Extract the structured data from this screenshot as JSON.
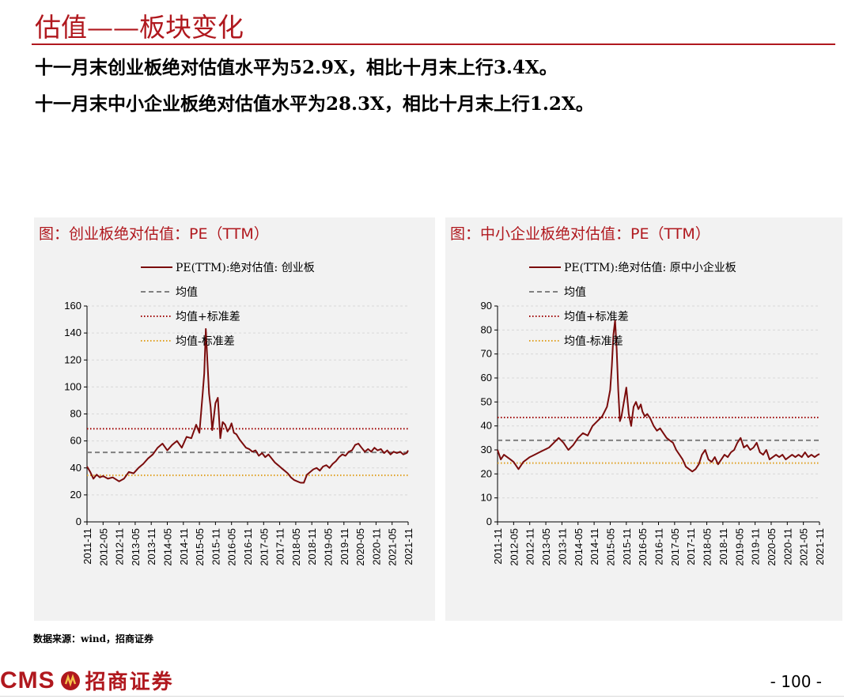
{
  "header": {
    "title": "估值——板块变化",
    "line1": "十一月末创业板绝对估值水平为52.9X，相比十月末上行3.4X。",
    "line2": "十一月末中小企业板绝对估值水平为28.3X，相比十月末上行1.2X。"
  },
  "footer": {
    "source": "数据来源：wind，招商证券",
    "logo_text": "CMS",
    "logo_cn": "招商证券",
    "page_number": "- 100 -"
  },
  "colors": {
    "brand": "#b0181e",
    "pe_line": "#7a0c0c",
    "mean": "#808080",
    "upper": "#a00000",
    "lower": "#e0a020"
  },
  "chart_data": [
    {
      "type": "line",
      "title": "图：创业板绝对估值：PE（TTM）",
      "categories": [
        "2011-11",
        "2012-05",
        "2012-11",
        "2013-05",
        "2013-11",
        "2014-05",
        "2014-11",
        "2015-05",
        "2015-11",
        "2016-05",
        "2016-11",
        "2017-05",
        "2017-11",
        "2018-05",
        "2018-11",
        "2019-05",
        "2019-11",
        "2020-05",
        "2020-11",
        "2021-05",
        "2021-11"
      ],
      "ylim": [
        0,
        160
      ],
      "yticks": [
        0,
        20,
        40,
        60,
        80,
        100,
        120,
        140,
        160
      ],
      "grid": true,
      "legend_position": "top-center",
      "series": [
        {
          "name": "PE(TTM):绝对估值: 创业板",
          "style": "solid",
          "x": [
            0,
            0.2,
            0.4,
            0.6,
            0.8,
            1.0,
            1.3,
            1.6,
            2.0,
            2.3,
            2.6,
            2.9,
            3.2,
            3.5,
            3.8,
            4.1,
            4.4,
            4.7,
            5.0,
            5.3,
            5.6,
            5.9,
            6.2,
            6.5,
            6.8,
            7.0,
            7.1,
            7.2,
            7.3,
            7.4,
            7.5,
            7.6,
            7.7,
            7.8,
            7.9,
            8.0,
            8.15,
            8.3,
            8.45,
            8.6,
            8.75,
            8.9,
            9.0,
            9.15,
            9.3,
            9.5,
            9.7,
            9.9,
            10.1,
            10.3,
            10.5,
            10.7,
            10.9,
            11.1,
            11.3,
            11.5,
            11.7,
            11.9,
            12.1,
            12.3,
            12.5,
            12.7,
            12.9,
            13.1,
            13.3,
            13.5,
            13.7,
            13.9,
            14.1,
            14.3,
            14.5,
            14.7,
            14.9,
            15.1,
            15.3,
            15.5,
            15.7,
            15.9,
            16.1,
            16.3,
            16.5,
            16.7,
            16.9,
            17.1,
            17.3,
            17.5,
            17.7,
            17.9,
            18.1,
            18.3,
            18.5,
            18.7,
            18.9,
            19.1,
            19.3,
            19.5,
            19.7,
            19.9,
            20.0
          ],
          "y": [
            41,
            37,
            32,
            35,
            33,
            34,
            32,
            33,
            30,
            32,
            37,
            36,
            40,
            43,
            47,
            50,
            55,
            58,
            53,
            57,
            60,
            55,
            63,
            62,
            72,
            66,
            80,
            95,
            110,
            143,
            118,
            95,
            85,
            68,
            78,
            88,
            92,
            62,
            74,
            72,
            67,
            70,
            73,
            66,
            65,
            61,
            58,
            55,
            54,
            52,
            53,
            49,
            51,
            48,
            50,
            47,
            44,
            42,
            40,
            38,
            36,
            33,
            31,
            30,
            29,
            29,
            35,
            37,
            39,
            40,
            38,
            41,
            42,
            40,
            43,
            45,
            48,
            50,
            49,
            52,
            53,
            57,
            58,
            55,
            52,
            54,
            52,
            55,
            53,
            54,
            51,
            53,
            50,
            52,
            51,
            52,
            50,
            51,
            53
          ]
        },
        {
          "name": "均值",
          "style": "dashed",
          "constant": 51.5
        },
        {
          "name": "均值+标准差",
          "style": "dotted",
          "constant": 69
        },
        {
          "name": "均值-标准差",
          "style": "dotted",
          "constant": 34.5
        }
      ]
    },
    {
      "type": "line",
      "title": "图：中小企业板绝对估值：PE（TTM）",
      "categories": [
        "2011-11",
        "2012-05",
        "2012-11",
        "2013-05",
        "2013-11",
        "2014-05",
        "2014-11",
        "2015-05",
        "2015-11",
        "2016-05",
        "2016-11",
        "2017-05",
        "2017-11",
        "2018-05",
        "2018-11",
        "2019-05",
        "2019-11",
        "2020-05",
        "2020-11",
        "2021-05",
        "2021-11"
      ],
      "ylim": [
        0,
        90
      ],
      "yticks": [
        0,
        10,
        20,
        30,
        40,
        50,
        60,
        70,
        80,
        90
      ],
      "grid": true,
      "legend_position": "top-center",
      "series": [
        {
          "name": "PE(TTM):绝对估值: 原中小企业板",
          "style": "solid",
          "x": [
            0,
            0.2,
            0.4,
            0.6,
            0.8,
            1.0,
            1.3,
            1.6,
            2.0,
            2.3,
            2.6,
            2.9,
            3.2,
            3.5,
            3.8,
            4.1,
            4.4,
            4.7,
            5.0,
            5.3,
            5.6,
            5.9,
            6.2,
            6.5,
            6.8,
            7.0,
            7.1,
            7.2,
            7.3,
            7.4,
            7.5,
            7.6,
            7.7,
            7.8,
            7.9,
            8.0,
            8.15,
            8.3,
            8.45,
            8.6,
            8.75,
            8.9,
            9.0,
            9.15,
            9.3,
            9.5,
            9.7,
            9.9,
            10.1,
            10.3,
            10.5,
            10.7,
            10.9,
            11.1,
            11.3,
            11.5,
            11.7,
            11.9,
            12.1,
            12.3,
            12.5,
            12.7,
            12.9,
            13.1,
            13.3,
            13.5,
            13.7,
            13.9,
            14.1,
            14.3,
            14.5,
            14.7,
            14.9,
            15.1,
            15.3,
            15.5,
            15.7,
            15.9,
            16.1,
            16.3,
            16.5,
            16.7,
            16.9,
            17.1,
            17.3,
            17.5,
            17.7,
            17.9,
            18.1,
            18.3,
            18.5,
            18.7,
            18.9,
            19.1,
            19.3,
            19.5,
            19.7,
            19.9,
            20.0
          ],
          "y": [
            30,
            26,
            28,
            27,
            26,
            25,
            22,
            25,
            27,
            28,
            29,
            30,
            31,
            33,
            35,
            33,
            30,
            32,
            35,
            37,
            36,
            40,
            42,
            44,
            48,
            55,
            65,
            78,
            84,
            72,
            55,
            42,
            44,
            48,
            52,
            56,
            45,
            40,
            48,
            50,
            47,
            49,
            46,
            44,
            45,
            43,
            40,
            38,
            39,
            37,
            35,
            34,
            33,
            30,
            28,
            26,
            23,
            22,
            21,
            22,
            24,
            28,
            30,
            26,
            25,
            27,
            24,
            26,
            28,
            27,
            29,
            30,
            33,
            35,
            31,
            32,
            30,
            31,
            33,
            29,
            28,
            30,
            26,
            27,
            28,
            27,
            28,
            26,
            27,
            28,
            27,
            28,
            27,
            29,
            27,
            28,
            27,
            28,
            28.3
          ]
        },
        {
          "name": "均值",
          "style": "dashed",
          "constant": 34
        },
        {
          "name": "均值+标准差",
          "style": "dotted",
          "constant": 43.5
        },
        {
          "name": "均值-标准差",
          "style": "dotted",
          "constant": 24.5
        }
      ]
    }
  ]
}
